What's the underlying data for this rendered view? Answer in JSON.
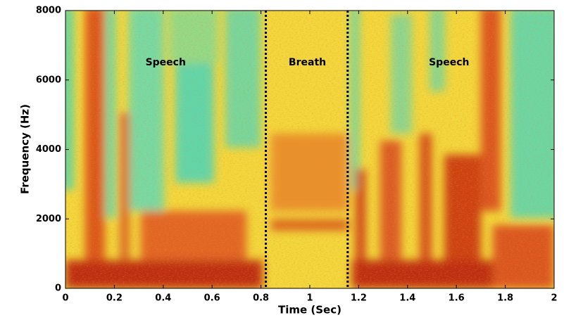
{
  "chart_data": {
    "type": "spectrogram",
    "xlabel": "Time (Sec)",
    "ylabel": "Frequency (Hz)",
    "xlim": [
      0,
      2
    ],
    "xticks": [
      0,
      0.2,
      0.4,
      0.6,
      0.8,
      1,
      1.2,
      1.4,
      1.6,
      1.8,
      2
    ],
    "ylim": [
      0,
      8000
    ],
    "yticks": [
      0,
      2000,
      4000,
      6000,
      8000
    ],
    "vlines": [
      0.82,
      1.155
    ],
    "annotations": [
      {
        "text": "Speech",
        "x": 0.41,
        "y": 6500
      },
      {
        "text": "Breath",
        "x": 0.99,
        "y": 6500
      },
      {
        "text": "Speech",
        "x": 1.57,
        "y": 6500
      }
    ]
  }
}
